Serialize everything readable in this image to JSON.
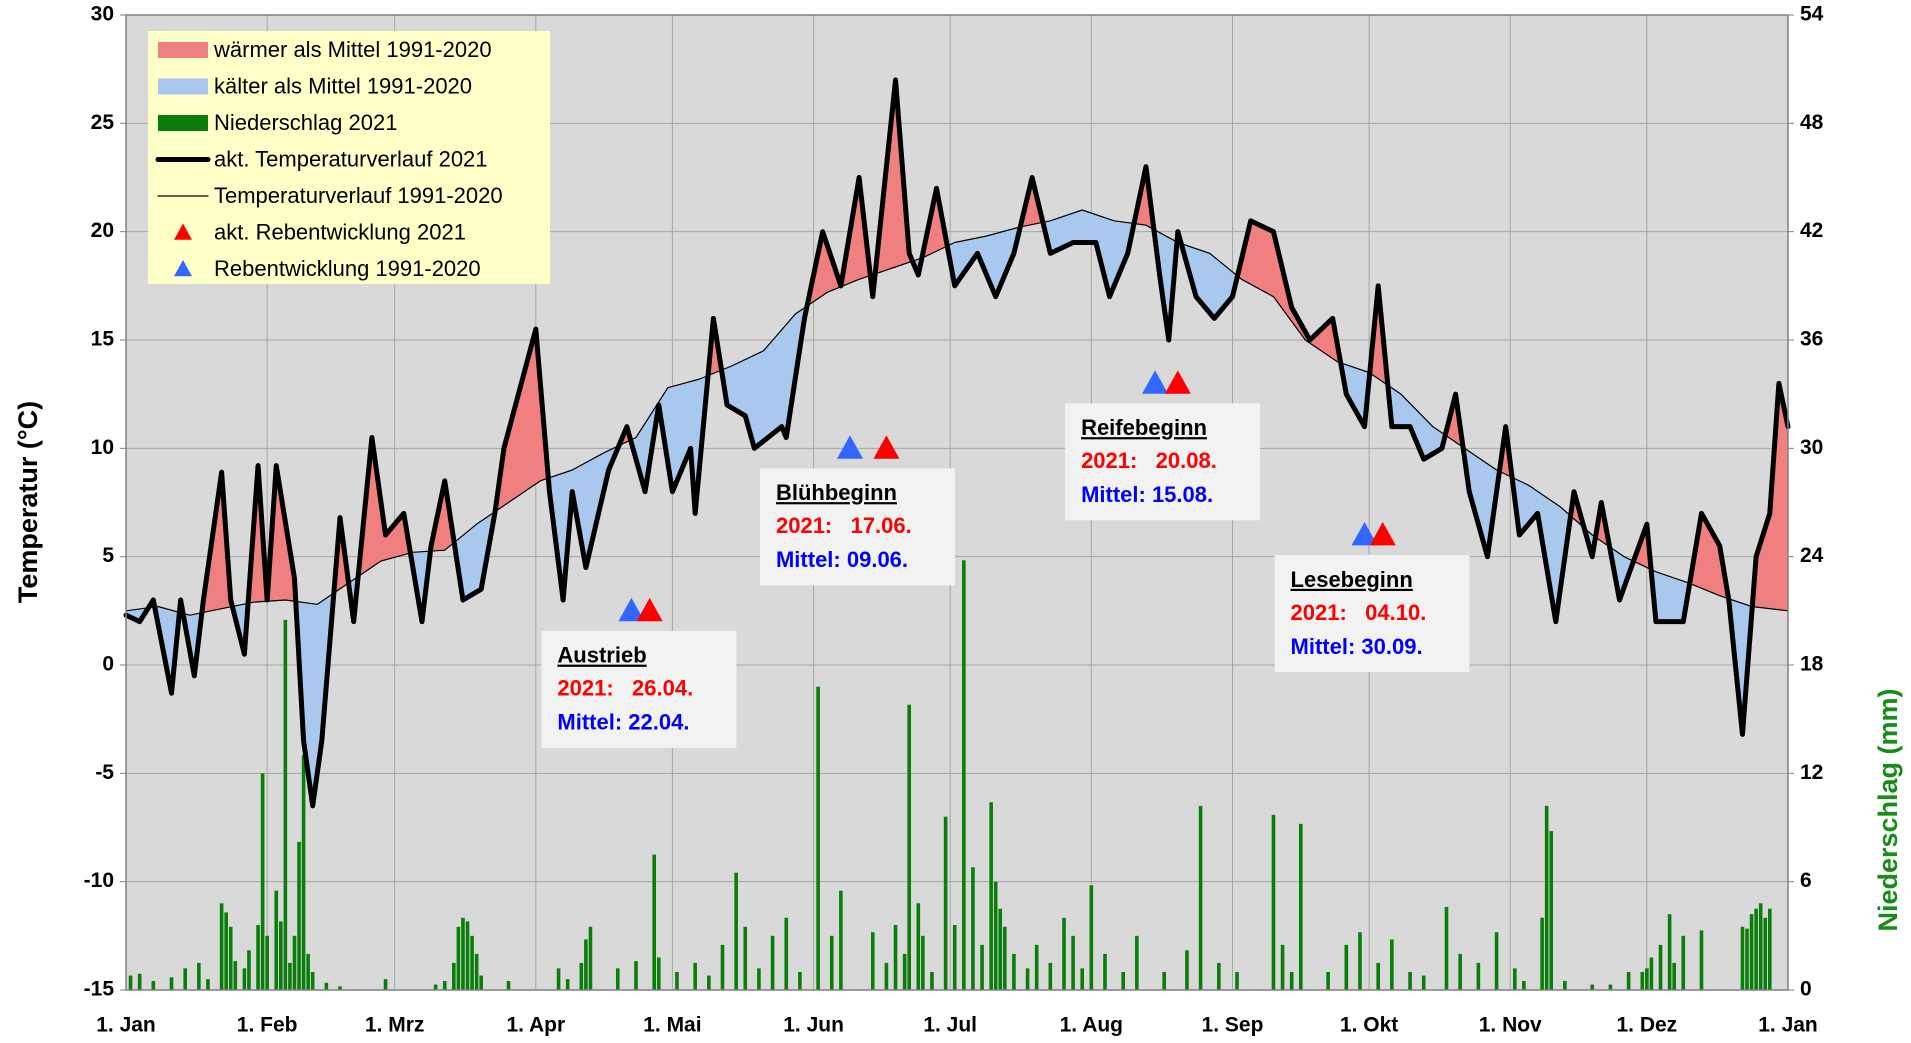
{
  "chart_data": {
    "type": "line",
    "y_label": "Temperatur (°C)",
    "y2_label": "Niederschlag (mm)",
    "y2_label_color": "#1a8a1a",
    "xlim": [
      0,
      365
    ],
    "xticks": [
      {
        "value": 0,
        "label": "1. Jan"
      },
      {
        "value": 31,
        "label": "1. Feb"
      },
      {
        "value": 59,
        "label": "1. Mrz"
      },
      {
        "value": 90,
        "label": "1. Apr"
      },
      {
        "value": 120,
        "label": "1. Mai"
      },
      {
        "value": 151,
        "label": "1. Jun"
      },
      {
        "value": 181,
        "label": "1. Jul"
      },
      {
        "value": 212,
        "label": "1. Aug"
      },
      {
        "value": 243,
        "label": "1. Sep"
      },
      {
        "value": 273,
        "label": "1. Okt"
      },
      {
        "value": 304,
        "label": "1. Nov"
      },
      {
        "value": 334,
        "label": "1. Dez"
      },
      {
        "value": 365,
        "label": "1. Jan"
      }
    ],
    "ylim": [
      -15,
      30
    ],
    "yticks": [
      -15,
      -10,
      -5,
      0,
      5,
      10,
      15,
      20,
      25,
      30
    ],
    "y2lim": [
      0,
      54
    ],
    "y2ticks": [
      0,
      6,
      12,
      18,
      24,
      30,
      36,
      42,
      48,
      54
    ],
    "grid": true,
    "fill_between": {
      "warm": {
        "name": "wärmer als Mittel 1991-2020",
        "color": "#f08080"
      },
      "cold": {
        "name": "kälter als Mittel 1991-2020",
        "color": "#a8c8ee"
      }
    },
    "series": [
      {
        "name": "akt. Temperaturverlauf 2021",
        "color": "#000000",
        "line_width": 5,
        "x": [
          0,
          3,
          6,
          10,
          12,
          15,
          17,
          21,
          23,
          26,
          29,
          31,
          33,
          37,
          39,
          41,
          43,
          47,
          50,
          54,
          57,
          61,
          65,
          67,
          70,
          74,
          78,
          81,
          83,
          90,
          93,
          96,
          98,
          101,
          106,
          110,
          114,
          117,
          120,
          124,
          125,
          129,
          132,
          136,
          138,
          144,
          145,
          149,
          153,
          157,
          161,
          164,
          169,
          172,
          174,
          178,
          182,
          187,
          191,
          195,
          199,
          203,
          208,
          213,
          216,
          220,
          224,
          227,
          229,
          231,
          235,
          239,
          243,
          247,
          252,
          256,
          260,
          265,
          268,
          272,
          275,
          278,
          282,
          285,
          289,
          292,
          295,
          299,
          301,
          303,
          306,
          310,
          314,
          318,
          322,
          324,
          328,
          334,
          336,
          342,
          346,
          350,
          352,
          355,
          358,
          361,
          363,
          365
        ],
        "values": [
          2.3,
          2.0,
          3.0,
          -1.3,
          3.0,
          -0.5,
          3.0,
          8.9,
          3.0,
          0.5,
          9.2,
          3.0,
          9.2,
          4.0,
          -3.5,
          -6.5,
          -3.5,
          6.8,
          2.0,
          10.5,
          6.0,
          7.0,
          2.0,
          5.5,
          8.5,
          3.0,
          3.5,
          7.0,
          10.0,
          15.5,
          8.0,
          3.0,
          8.0,
          4.5,
          9.0,
          11.0,
          8.0,
          12.0,
          8.0,
          10.0,
          7.0,
          16.0,
          12.0,
          11.5,
          10.0,
          11.0,
          10.5,
          16.0,
          20.0,
          17.5,
          22.5,
          17.0,
          27.0,
          19.0,
          18.0,
          22.0,
          17.5,
          19.0,
          17.0,
          19.0,
          22.5,
          19.0,
          19.5,
          19.5,
          17.0,
          19.0,
          23.0,
          18.0,
          15.0,
          20.0,
          17.0,
          16.0,
          17.0,
          20.5,
          20.0,
          16.5,
          15.0,
          16.0,
          12.5,
          11.0,
          17.5,
          11.0,
          11.0,
          9.5,
          10.0,
          12.5,
          8.0,
          5.0,
          8.0,
          11.0,
          6.0,
          7.0,
          2.0,
          8.0,
          5.0,
          7.5,
          3.0,
          6.5,
          2.0,
          2.0,
          7.0,
          5.5,
          3.0,
          -3.2,
          5.0,
          7.0,
          13.0,
          11.0
        ]
      },
      {
        "name": "Temperaturverlauf 1991-2020",
        "color": "#000000",
        "line_width": 1.2,
        "x": [
          0,
          7,
          14,
          21,
          28,
          35,
          42,
          49,
          56,
          63,
          70,
          77,
          84,
          91,
          98,
          105,
          112,
          119,
          126,
          133,
          140,
          147,
          154,
          161,
          168,
          175,
          182,
          189,
          196,
          203,
          210,
          217,
          224,
          231,
          238,
          245,
          252,
          259,
          266,
          273,
          280,
          287,
          294,
          301,
          308,
          315,
          322,
          329,
          336,
          343,
          350,
          357,
          365
        ],
        "values": [
          2.5,
          2.7,
          2.3,
          2.6,
          2.9,
          3.0,
          2.8,
          3.8,
          4.8,
          5.2,
          5.3,
          6.5,
          7.5,
          8.5,
          9.0,
          9.8,
          10.5,
          12.8,
          13.2,
          13.8,
          14.5,
          16.2,
          17.2,
          17.8,
          18.3,
          18.8,
          19.5,
          19.8,
          20.2,
          20.5,
          21.0,
          20.5,
          20.3,
          19.5,
          19.0,
          17.8,
          17.0,
          15.0,
          14.0,
          13.5,
          12.5,
          11.0,
          10.0,
          9.0,
          8.3,
          7.3,
          6.0,
          5.0,
          4.3,
          3.8,
          3.2,
          2.7,
          2.5
        ]
      },
      {
        "name": "Niederschlag 2021",
        "type": "bar",
        "axis": "y2",
        "color": "#0a7d0a",
        "x": [
          1,
          3,
          6,
          10,
          13,
          16,
          18,
          21,
          22,
          23,
          24,
          26,
          27,
          29,
          30,
          31,
          33,
          34,
          35,
          36,
          37,
          38,
          39,
          40,
          41,
          44,
          47,
          57,
          68,
          70,
          72,
          73,
          74,
          75,
          76,
          77,
          78,
          84,
          95,
          97,
          100,
          101,
          102,
          108,
          112,
          116,
          117,
          121,
          125,
          128,
          131,
          134,
          136,
          139,
          142,
          145,
          148,
          152,
          155,
          157,
          164,
          167,
          169,
          171,
          172,
          174,
          175,
          177,
          180,
          182,
          184,
          186,
          188,
          190,
          191,
          192,
          193,
          195,
          198,
          200,
          203,
          206,
          208,
          210,
          212,
          215,
          219,
          222,
          228,
          233,
          236,
          240,
          244,
          252,
          254,
          256,
          258,
          264,
          268,
          271,
          275,
          278,
          282,
          285,
          290,
          293,
          297,
          301,
          305,
          307,
          311,
          312,
          313,
          316,
          322,
          326,
          330,
          333,
          334,
          335,
          337,
          339,
          340,
          342,
          346,
          355,
          356,
          357,
          358,
          359,
          360,
          361
        ],
        "values": [
          0.8,
          0.9,
          0.5,
          0.7,
          1.2,
          1.5,
          0.6,
          4.8,
          4.3,
          3.5,
          1.6,
          1.2,
          2.2,
          3.6,
          12.0,
          3.0,
          5.5,
          3.8,
          20.5,
          1.5,
          3.0,
          8.2,
          13.0,
          2.0,
          1.0,
          0.4,
          0.2,
          0.6,
          0.3,
          0.5,
          1.5,
          3.5,
          4.0,
          3.8,
          3.0,
          2.0,
          0.8,
          0.5,
          1.2,
          0.6,
          1.5,
          2.8,
          3.5,
          1.2,
          1.6,
          7.5,
          1.8,
          1.0,
          1.5,
          0.8,
          2.5,
          6.5,
          3.5,
          1.2,
          3.0,
          4.0,
          1.0,
          16.8,
          3.0,
          5.5,
          3.2,
          1.5,
          3.6,
          2.0,
          15.8,
          4.8,
          3.0,
          1.0,
          9.6,
          3.6,
          23.8,
          6.8,
          2.5,
          10.4,
          6.0,
          4.5,
          3.5,
          2.0,
          1.2,
          2.5,
          1.5,
          4.0,
          3.0,
          1.2,
          5.8,
          2.0,
          1.0,
          3.0,
          1.0,
          2.2,
          10.2,
          1.5,
          1.0,
          9.7,
          2.5,
          1.0,
          9.2,
          1.0,
          2.5,
          3.2,
          1.5,
          2.8,
          1.0,
          0.8,
          4.6,
          2.0,
          1.5,
          3.2,
          1.2,
          0.5,
          4.0,
          10.2,
          8.8,
          0.5,
          0.3,
          0.3,
          1.0,
          1.0,
          1.2,
          1.8,
          2.5,
          4.2,
          1.5,
          3.0,
          3.3,
          3.5,
          3.4,
          4.2,
          4.5,
          4.8,
          4.0,
          4.5
        ]
      }
    ],
    "markers": [
      {
        "name": "akt. Rebentwicklung 2021",
        "color": "#ff0000",
        "x": [
          115,
          167,
          231,
          276
        ],
        "values": [
          2.5,
          10,
          13,
          6
        ]
      },
      {
        "name": "Rebentwicklung 1991-2020",
        "color": "#3366ff",
        "x": [
          111,
          159,
          226,
          272
        ],
        "values": [
          2.5,
          10,
          13,
          6
        ]
      }
    ],
    "annotations": [
      {
        "title": "Austrieb",
        "line_2021": "2021:   26.04.",
        "line_mean": "Mittel: 22.04."
      },
      {
        "title": "Blühbeginn",
        "line_2021": "2021:   17.06.",
        "line_mean": "Mittel: 09.06."
      },
      {
        "title": "Reifebeginn",
        "line_2021": "2021:   20.08.",
        "line_mean": "Mittel: 15.08."
      },
      {
        "title": "Lesebeginn",
        "line_2021": "2021:   04.10.",
        "line_mean": "Mittel: 30.09."
      }
    ]
  }
}
